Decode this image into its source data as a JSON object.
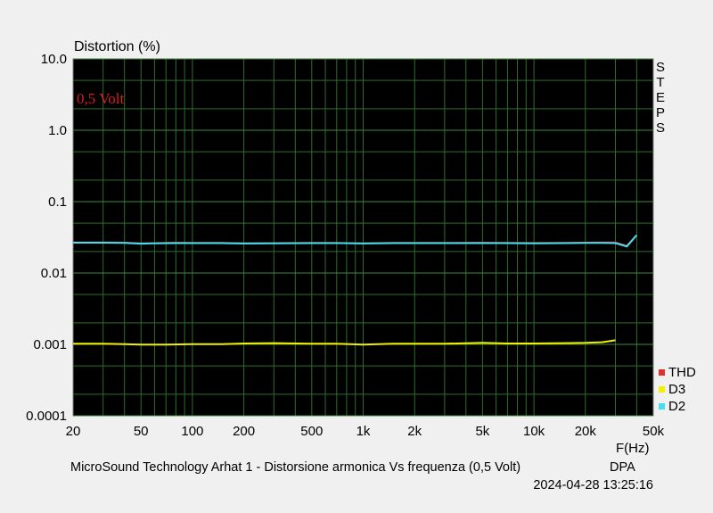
{
  "chart_data": {
    "type": "line",
    "ylabel": "Distortion (%)",
    "xlabel": "F(Hz)",
    "annotation": "0,5 Volt",
    "side_label": [
      "S",
      "T",
      "E",
      "P",
      "S"
    ],
    "x_scale": "log",
    "y_scale": "log",
    "xlim": [
      20,
      50000
    ],
    "ylim": [
      0.0001,
      10
    ],
    "x_ticks": [
      20,
      50,
      100,
      200,
      500,
      1000,
      2000,
      5000,
      10000,
      20000,
      50000
    ],
    "x_tick_labels": [
      "20",
      "50",
      "100",
      "200",
      "500",
      "1k",
      "2k",
      "5k",
      "10k",
      "20k",
      "50k"
    ],
    "y_ticks": [
      0.0001,
      0.001,
      0.01,
      0.1,
      1,
      10
    ],
    "y_tick_labels": [
      "0.0001",
      "0.001",
      "0.01",
      "0.1",
      "1.0",
      "10.0"
    ],
    "grid": true,
    "legend_position": "bottom-right",
    "series": [
      {
        "name": "THD",
        "color": "#e03030",
        "x": [
          20,
          30,
          40,
          50,
          60,
          80,
          100,
          150,
          200,
          300,
          500,
          700,
          1000,
          1500,
          2000,
          3000,
          5000,
          7000,
          10000,
          15000,
          20000,
          25000,
          30000,
          35000,
          40000
        ],
        "y": [
          0.0268,
          0.0268,
          0.0266,
          0.026,
          0.0262,
          0.0266,
          0.0264,
          0.0264,
          0.0261,
          0.0262,
          0.0264,
          0.0264,
          0.0261,
          0.0264,
          0.0264,
          0.0264,
          0.0266,
          0.0264,
          0.0263,
          0.0264,
          0.0266,
          0.0268,
          0.0268,
          0.024,
          0.034
        ]
      },
      {
        "name": "D3",
        "color": "#f0f000",
        "x": [
          20,
          30,
          40,
          50,
          70,
          100,
          150,
          200,
          300,
          500,
          700,
          1000,
          1500,
          2000,
          3000,
          5000,
          7000,
          10000,
          15000,
          20000,
          25000,
          30000
        ],
        "y": [
          0.00102,
          0.00102,
          0.00101,
          0.00099,
          0.00099,
          0.00101,
          0.00101,
          0.00103,
          0.00104,
          0.00102,
          0.00102,
          0.00099,
          0.00102,
          0.00102,
          0.00102,
          0.00105,
          0.00103,
          0.00103,
          0.00104,
          0.00105,
          0.00107,
          0.00114
        ]
      },
      {
        "name": "D2",
        "color": "#40e0f0",
        "x": [
          20,
          30,
          40,
          50,
          60,
          80,
          100,
          150,
          200,
          300,
          500,
          700,
          1000,
          1500,
          2000,
          3000,
          5000,
          7000,
          10000,
          15000,
          20000,
          25000,
          30000,
          35000,
          40000
        ],
        "y": [
          0.0266,
          0.0266,
          0.0264,
          0.0258,
          0.026,
          0.0262,
          0.0262,
          0.0262,
          0.0259,
          0.026,
          0.0262,
          0.0262,
          0.0259,
          0.0262,
          0.0262,
          0.0262,
          0.0262,
          0.0262,
          0.0261,
          0.0262,
          0.0264,
          0.0264,
          0.0262,
          0.0235,
          0.034
        ]
      }
    ]
  },
  "footer": {
    "title": "MicroSound Technology Arhat 1 - Distorsione armonica Vs frequenza (0,5 Volt)",
    "brand": "DPA",
    "timestamp": "2024-04-28 13:25:16"
  }
}
